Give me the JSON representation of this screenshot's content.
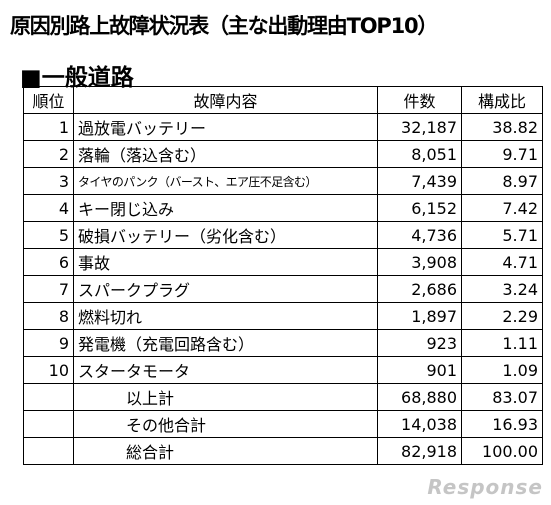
{
  "title": "原因別路上故障状況表（主な出動理由TOP10）",
  "section": "■一般道路",
  "table": {
    "headers": {
      "rank": "順位",
      "reason": "故障内容",
      "count": "件数",
      "ratio": "構成比"
    },
    "rows": [
      {
        "rank": "1",
        "reason": "過放電バッテリー",
        "count": "32,187",
        "ratio": "38.82"
      },
      {
        "rank": "2",
        "reason": "落輪（落込含む）",
        "count": "8,051",
        "ratio": "9.71"
      },
      {
        "rank": "3",
        "reason": "タイヤのパンク（バースト、エア圧不足含む）",
        "count": "7,439",
        "ratio": "8.97"
      },
      {
        "rank": "4",
        "reason": "キー閉じ込み",
        "count": "6,152",
        "ratio": "7.42"
      },
      {
        "rank": "5",
        "reason": "破損バッテリー（劣化含む）",
        "count": "4,736",
        "ratio": "5.71"
      },
      {
        "rank": "6",
        "reason": "事故",
        "count": "3,908",
        "ratio": "4.71"
      },
      {
        "rank": "7",
        "reason": "スパークプラグ",
        "count": "2,686",
        "ratio": "3.24"
      },
      {
        "rank": "8",
        "reason": "燃料切れ",
        "count": "1,897",
        "ratio": "2.29"
      },
      {
        "rank": "9",
        "reason": "発電機（充電回路含む）",
        "count": "923",
        "ratio": "1.11"
      },
      {
        "rank": "10",
        "reason": "スタータモータ",
        "count": "901",
        "ratio": "1.09"
      }
    ],
    "summary": [
      {
        "label": "以上計",
        "count": "68,880",
        "ratio": "83.07"
      },
      {
        "label": "その他合計",
        "count": "14,038",
        "ratio": "16.93"
      },
      {
        "label": "総合計",
        "count": "82,918",
        "ratio": "100.00"
      }
    ]
  },
  "watermark": "Response"
}
